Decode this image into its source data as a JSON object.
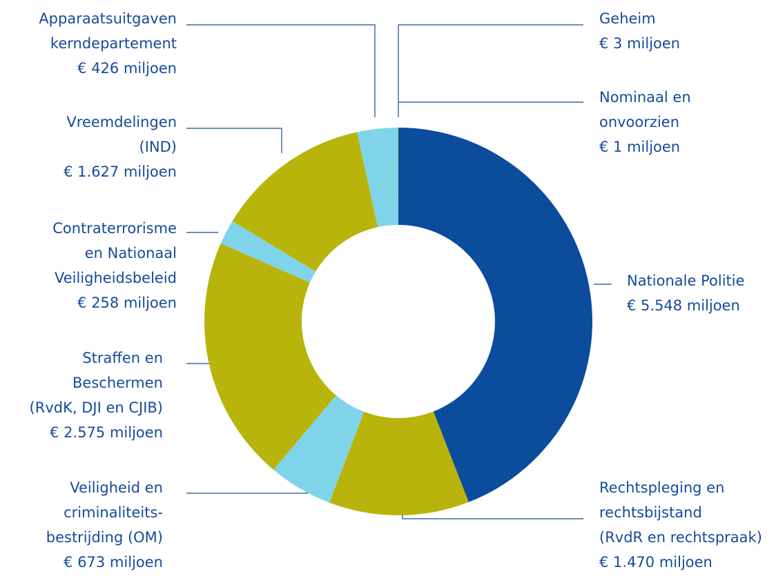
{
  "chart_data": {
    "type": "pie",
    "categories": [
      [
        "Nationale Politie"
      ],
      [
        "Rechtspleging en",
        "rechtsbijstand",
        "(RvdR en rechtspraak)"
      ],
      [
        "Veiligheid en",
        "criminaliteits-",
        "bestrijding (OM)"
      ],
      [
        "Straffen en",
        "Beschermen",
        "(RvdK, DJI en CJIB)"
      ],
      [
        "Contraterrorisme",
        "en Nationaal",
        "Veiligheidsbeleid"
      ],
      [
        "Vreemdelingen",
        "(IND)"
      ],
      [
        "Apparaatsuitgaven",
        "kerndepartement"
      ],
      [
        "Geheim"
      ],
      [
        "Nominaal en",
        "onvoorzien"
      ]
    ],
    "values": [
      5548,
      1470,
      673,
      2575,
      258,
      1627,
      426,
      3,
      1
    ],
    "value_labels": [
      "€ 5.548 miljoen",
      "€ 1.470 miljoen",
      "€ 673 miljoen",
      "€ 2.575 miljoen",
      "€ 258 miljoen",
      "€ 1.627 miljoen",
      "€ 426 miljoen",
      "€ 3 miljoen",
      "€ 1 miljoen"
    ],
    "colors": [
      "#0b4c9c",
      "#b8b40b",
      "#80d4ea",
      "#b8b40b",
      "#80d4ea",
      "#b8b40b",
      "#80d4ea",
      "#b8b40b",
      "#b8b40b"
    ]
  }
}
